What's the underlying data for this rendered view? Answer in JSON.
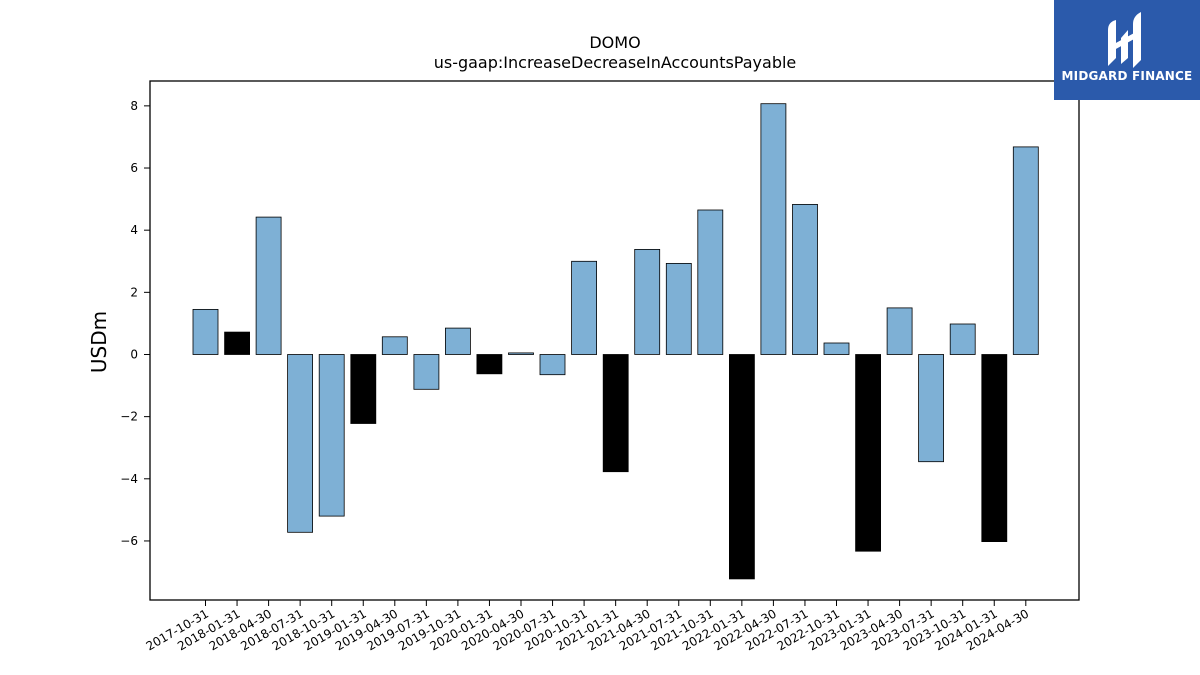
{
  "brand": {
    "name": "MIDGARD FINANCE",
    "bg_color": "#2b5aab"
  },
  "chart_data": {
    "type": "bar",
    "title": "DOMO",
    "subtitle": "us-gaap:IncreaseDecreaseInAccountsPayable",
    "xlabel": "",
    "ylabel": "USDm",
    "ylim": [
      -7.9,
      8.8
    ],
    "yticks": [
      -6,
      -4,
      -2,
      0,
      2,
      4,
      6,
      8
    ],
    "categories": [
      "2017-10-31",
      "2018-01-31",
      "2018-04-30",
      "2018-07-31",
      "2018-10-31",
      "2019-01-31",
      "2019-04-30",
      "2019-07-31",
      "2019-10-31",
      "2020-01-31",
      "2020-04-30",
      "2020-07-31",
      "2020-10-31",
      "2021-01-31",
      "2021-04-30",
      "2021-07-31",
      "2021-10-31",
      "2022-01-31",
      "2022-04-30",
      "2022-07-31",
      "2022-10-31",
      "2023-01-31",
      "2023-04-30",
      "2023-07-31",
      "2023-10-31",
      "2024-01-31",
      "2024-04-30"
    ],
    "values": [
      1.45,
      0.72,
      4.42,
      -5.72,
      -5.2,
      -2.22,
      0.57,
      -1.12,
      0.85,
      -0.62,
      0.05,
      -0.65,
      3.0,
      -3.77,
      3.38,
      2.93,
      4.65,
      -7.22,
      8.07,
      4.83,
      0.37,
      -6.33,
      1.5,
      -3.45,
      0.98,
      -6.02,
      6.68
    ],
    "fiscal_q4": [
      false,
      true,
      false,
      false,
      false,
      true,
      false,
      false,
      false,
      true,
      false,
      false,
      false,
      true,
      false,
      false,
      false,
      true,
      false,
      false,
      false,
      true,
      false,
      false,
      false,
      true,
      false
    ],
    "colors": {
      "bar": "#7eb0d5",
      "q4_bar": "#000000",
      "edge": "#000000"
    },
    "grid": false,
    "legend": "none"
  }
}
